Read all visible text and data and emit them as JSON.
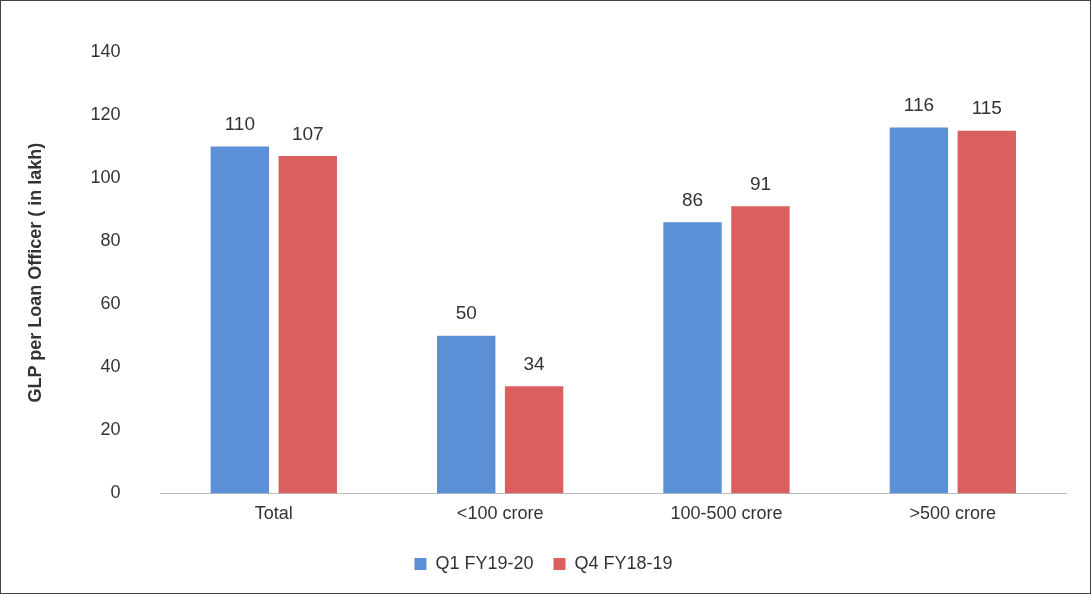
{
  "chart_data": {
    "type": "bar",
    "ylabel": "GLP per Loan Officer ( in lakh)",
    "categories": [
      "Total",
      "<100 crore",
      "100-500 crore",
      ">500 crore"
    ],
    "series": [
      {
        "name": "Q1 FY19-20",
        "color": "#5b8fd6",
        "values": [
          110,
          50,
          86,
          116
        ]
      },
      {
        "name": "Q4 FY18-19",
        "color": "#d9605e",
        "values": [
          107,
          34,
          91,
          115
        ]
      }
    ],
    "ylim": [
      0,
      140
    ],
    "yticks": [
      0,
      20,
      40,
      60,
      80,
      100,
      120,
      140
    ],
    "grid": false,
    "legend": "bottom",
    "data_labels": true
  }
}
